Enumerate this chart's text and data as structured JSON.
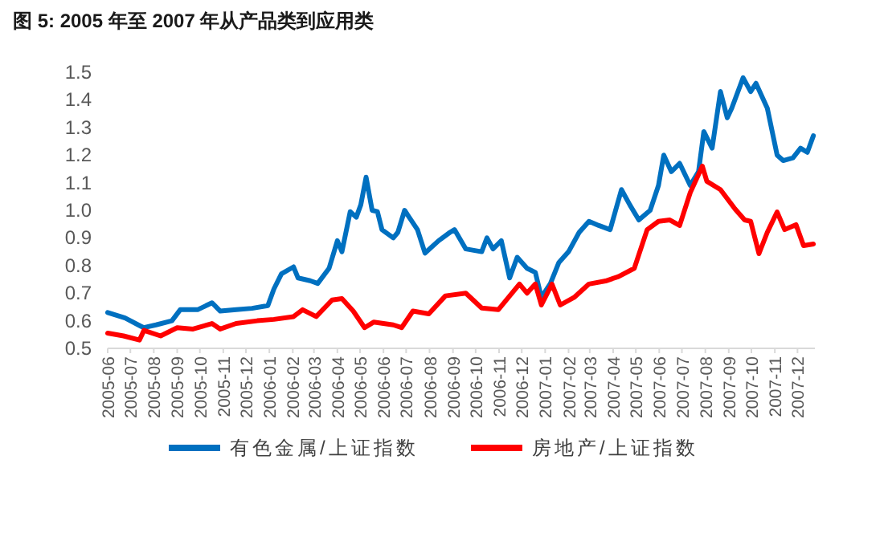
{
  "chart_data": {
    "type": "line",
    "title": "图 5: 2005 年至 2007 年从产品类到应用类",
    "xlim": [
      "2005-06-01",
      "2007-12-24"
    ],
    "ylim": [
      0.5,
      1.5
    ],
    "yticks": [
      0.5,
      0.6,
      0.7,
      0.8,
      0.9,
      {
        "value": 1,
        "label": "1.0"
      },
      1.1,
      1.2,
      1.3,
      1.4,
      1.5
    ],
    "xticks": [
      "2005-06",
      "2005-07",
      "2005-08",
      "2005-09",
      "2005-10",
      "2005-11",
      "2005-12",
      "2006-01",
      "2006-02",
      "2006-03",
      "2006-04",
      "2006-05",
      "2006-06",
      "2006-07",
      "2006-08",
      "2006-09",
      "2006-10",
      "2006-11",
      "2006-12",
      "2007-01",
      "2007-02",
      "2007-03",
      "2007-04",
      "2007-05",
      "2007-06",
      "2007-07",
      "2007-08",
      "2007-09",
      "2007-10",
      "2007-11",
      "2007-12"
    ],
    "legend": "bottom",
    "series": [
      {
        "name": "有色金属/上证指数",
        "color": "#0070c0",
        "x": [
          "2005-06-01",
          "2005-06-24",
          "2005-07-15",
          "2005-07-19",
          "2005-08-04",
          "2005-08-25",
          "2005-09-05",
          "2005-09-28",
          "2005-10-17",
          "2005-10-28",
          "2005-11-18",
          "2005-12-09",
          "2005-12-30",
          "2006-01-07",
          "2006-01-17",
          "2006-02-02",
          "2006-02-08",
          "2006-02-24",
          "2006-03-06",
          "2006-03-21",
          "2006-04-01",
          "2006-04-07",
          "2006-04-18",
          "2006-04-26",
          "2006-05-02",
          "2006-05-09",
          "2006-05-17",
          "2006-05-24",
          "2006-05-30",
          "2006-06-14",
          "2006-06-20",
          "2006-06-29",
          "2006-07-05",
          "2006-07-16",
          "2006-07-26",
          "2006-08-13",
          "2006-08-28",
          "2006-09-03",
          "2006-09-18",
          "2006-10-09",
          "2006-10-16",
          "2006-10-24",
          "2006-11-04",
          "2006-11-15",
          "2006-11-25",
          "2006-12-08",
          "2006-12-19",
          "2006-12-27",
          "2007-01-08",
          "2007-01-19",
          "2007-02-01",
          "2007-02-15",
          "2007-02-28",
          "2007-03-13",
          "2007-03-28",
          "2007-04-12",
          "2007-04-23",
          "2007-05-05",
          "2007-05-20",
          "2007-05-31",
          "2007-06-07",
          "2007-06-17",
          "2007-06-28",
          "2007-07-12",
          "2007-07-23",
          "2007-07-30",
          "2007-08-10",
          "2007-08-21",
          "2007-08-30",
          "2007-09-05",
          "2007-09-20",
          "2007-09-30",
          "2007-10-07",
          "2007-10-22",
          "2007-11-04",
          "2007-11-12",
          "2007-11-25",
          "2007-12-05",
          "2007-12-14",
          "2007-12-22"
        ],
        "values": [
          0.63,
          0.61,
          0.58,
          0.575,
          0.585,
          0.6,
          0.64,
          0.64,
          0.665,
          0.635,
          0.64,
          0.645,
          0.655,
          0.715,
          0.77,
          0.795,
          0.755,
          0.745,
          0.735,
          0.79,
          0.89,
          0.85,
          0.995,
          0.975,
          1.02,
          1.12,
          1.0,
          0.995,
          0.93,
          0.9,
          0.92,
          1.0,
          0.975,
          0.93,
          0.845,
          0.89,
          0.92,
          0.93,
          0.86,
          0.85,
          0.9,
          0.86,
          0.89,
          0.755,
          0.83,
          0.79,
          0.775,
          0.685,
          0.735,
          0.81,
          0.85,
          0.92,
          0.96,
          0.945,
          0.93,
          1.075,
          1.02,
          0.965,
          1.0,
          1.09,
          1.2,
          1.14,
          1.17,
          1.09,
          1.14,
          1.285,
          1.225,
          1.43,
          1.335,
          1.37,
          1.48,
          1.43,
          1.46,
          1.37,
          1.2,
          1.18,
          1.19,
          1.225,
          1.21,
          1.27
        ]
      },
      {
        "name": "房地产/上证指数",
        "color": "#ff0000",
        "x": [
          "2005-06-01",
          "2005-06-22",
          "2005-07-13",
          "2005-07-19",
          "2005-08-10",
          "2005-09-01",
          "2005-09-22",
          "2005-10-17",
          "2005-10-28",
          "2005-11-18",
          "2005-12-16",
          "2006-01-07",
          "2006-02-02",
          "2006-02-14",
          "2006-03-04",
          "2006-03-25",
          "2006-04-07",
          "2006-04-22",
          "2006-05-07",
          "2006-05-19",
          "2006-06-14",
          "2006-06-25",
          "2006-07-10",
          "2006-07-31",
          "2006-08-22",
          "2006-09-18",
          "2006-10-09",
          "2006-10-31",
          "2006-11-28",
          "2006-12-08",
          "2006-12-19",
          "2006-12-27",
          "2007-01-10",
          "2007-01-21",
          "2007-02-09",
          "2007-02-28",
          "2007-03-22",
          "2007-04-08",
          "2007-04-29",
          "2007-05-16",
          "2007-05-31",
          "2007-06-15",
          "2007-06-28",
          "2007-07-12",
          "2007-07-28",
          "2007-08-03",
          "2007-08-21",
          "2007-09-09",
          "2007-09-22",
          "2007-09-30",
          "2007-10-11",
          "2007-10-22",
          "2007-11-04",
          "2007-11-14",
          "2007-11-29",
          "2007-12-09",
          "2007-12-22"
        ],
        "values": [
          0.555,
          0.545,
          0.53,
          0.565,
          0.545,
          0.575,
          0.57,
          0.59,
          0.57,
          0.59,
          0.6,
          0.605,
          0.615,
          0.64,
          0.615,
          0.675,
          0.68,
          0.635,
          0.575,
          0.595,
          0.585,
          0.575,
          0.635,
          0.625,
          0.69,
          0.7,
          0.646,
          0.64,
          0.733,
          0.7,
          0.733,
          0.657,
          0.733,
          0.657,
          0.686,
          0.733,
          0.744,
          0.76,
          0.79,
          0.93,
          0.96,
          0.965,
          0.945,
          1.064,
          1.16,
          1.105,
          1.075,
          1.006,
          0.965,
          0.96,
          0.843,
          0.92,
          0.994,
          0.93,
          0.948,
          0.872,
          0.878
        ]
      }
    ]
  }
}
